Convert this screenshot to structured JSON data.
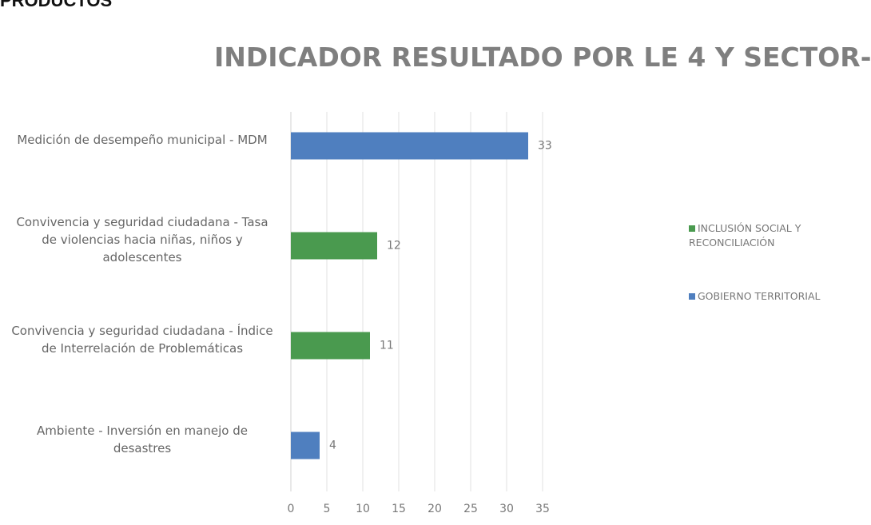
{
  "header": "PRODUCTOS",
  "chart_data": {
    "type": "bar",
    "orientation": "horizontal",
    "title": "INDICADOR RESULTADO POR LE 4 Y SECTOR-",
    "categories": [
      "Medición de desempeño municipal - MDM",
      "Convivencia y seguridad ciudadana - Tasa de violencias hacia niñas, niños y adolescentes",
      "Convivencia y seguridad ciudadana - Índice de Interrelación de Problemáticas",
      "Ambiente - Inversión en manejo de desastres"
    ],
    "series": [
      {
        "name": "INCLUSIÓN SOCIAL Y RECONCILIACIÓN",
        "color": "#4a9a4f",
        "values": [
          null,
          12,
          11,
          null
        ]
      },
      {
        "name": "GOBIERNO TERRITORIAL",
        "color": "#4f7fbf",
        "values": [
          33,
          null,
          null,
          4
        ]
      }
    ],
    "xlim": [
      0,
      35
    ],
    "xticks": [
      0,
      5,
      10,
      15,
      20,
      25,
      30,
      35
    ],
    "grid": true,
    "legend": "right"
  }
}
